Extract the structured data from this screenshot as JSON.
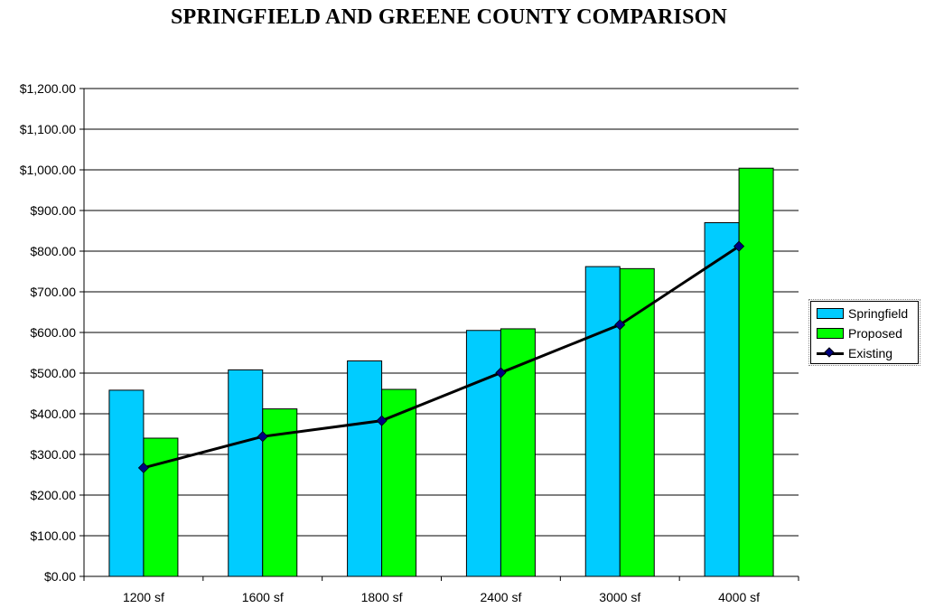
{
  "chart_data": {
    "type": "bar",
    "title": "SPRINGFIELD AND GREENE COUNTY COMPARISON",
    "categories": [
      "1200 sf",
      "1600 sf",
      "1800 sf",
      "2400 sf",
      "3000 sf",
      "4000 sf"
    ],
    "series": [
      {
        "name": "Springfield",
        "type": "bar",
        "color": "#00ccff",
        "values": [
          458,
          508,
          530,
          605,
          762,
          870
        ]
      },
      {
        "name": "Proposed",
        "type": "bar",
        "color": "#00ff00",
        "values": [
          340,
          412,
          460,
          609,
          757,
          1004
        ]
      },
      {
        "name": "Existing",
        "type": "line",
        "color": "#000000",
        "marker_color": "#000080",
        "values": [
          267,
          344,
          383,
          501,
          619,
          812
        ]
      }
    ],
    "ylim": [
      0,
      1200
    ],
    "y_ticks": [
      "$0.00",
      "$100.00",
      "$200.00",
      "$300.00",
      "$400.00",
      "$500.00",
      "$600.00",
      "$700.00",
      "$800.00",
      "$900.00",
      "$1,000.00",
      "$1,100.00",
      "$1,200.00"
    ],
    "xlabel": "",
    "ylabel": "",
    "grid": true,
    "legend_position": "right"
  }
}
